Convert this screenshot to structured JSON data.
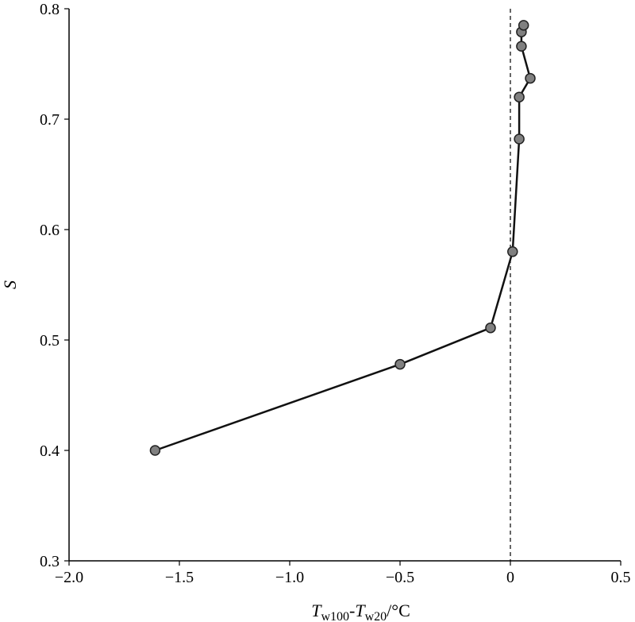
{
  "chart_data": {
    "type": "line",
    "title": "",
    "xlabel": {
      "main1": "T",
      "sub1": "w100",
      "sep": "-",
      "main2": "T",
      "sub2": "w20",
      "unit": "/°C"
    },
    "ylabel": "S",
    "xlim": [
      -2.0,
      0.5
    ],
    "ylim": [
      0.3,
      0.8
    ],
    "xticks": [
      "−2.0",
      "−1.5",
      "−1.0",
      "−0.5",
      "0",
      "0.5"
    ],
    "xtick_values": [
      -2.0,
      -1.5,
      -1.0,
      -0.5,
      0,
      0.5
    ],
    "yticks": [
      "0.3",
      "0.4",
      "0.5",
      "0.6",
      "0.7",
      "0.8"
    ],
    "ytick_values": [
      0.3,
      0.4,
      0.5,
      0.6,
      0.7,
      0.8
    ],
    "reference_line": {
      "x": 0,
      "style": "dashed"
    },
    "grid": false,
    "series": [
      {
        "x": [
          -1.61,
          -0.5,
          -0.09,
          0.01,
          0.04,
          0.04,
          0.09,
          0.05,
          0.05,
          0.06
        ],
        "y": [
          0.4,
          0.478,
          0.511,
          0.58,
          0.682,
          0.72,
          0.737,
          0.766,
          0.779,
          0.785
        ]
      }
    ],
    "colors": {
      "line": "#111111",
      "marker_fill": "#808080",
      "marker_stroke": "#222222",
      "axis": "#000000"
    }
  }
}
